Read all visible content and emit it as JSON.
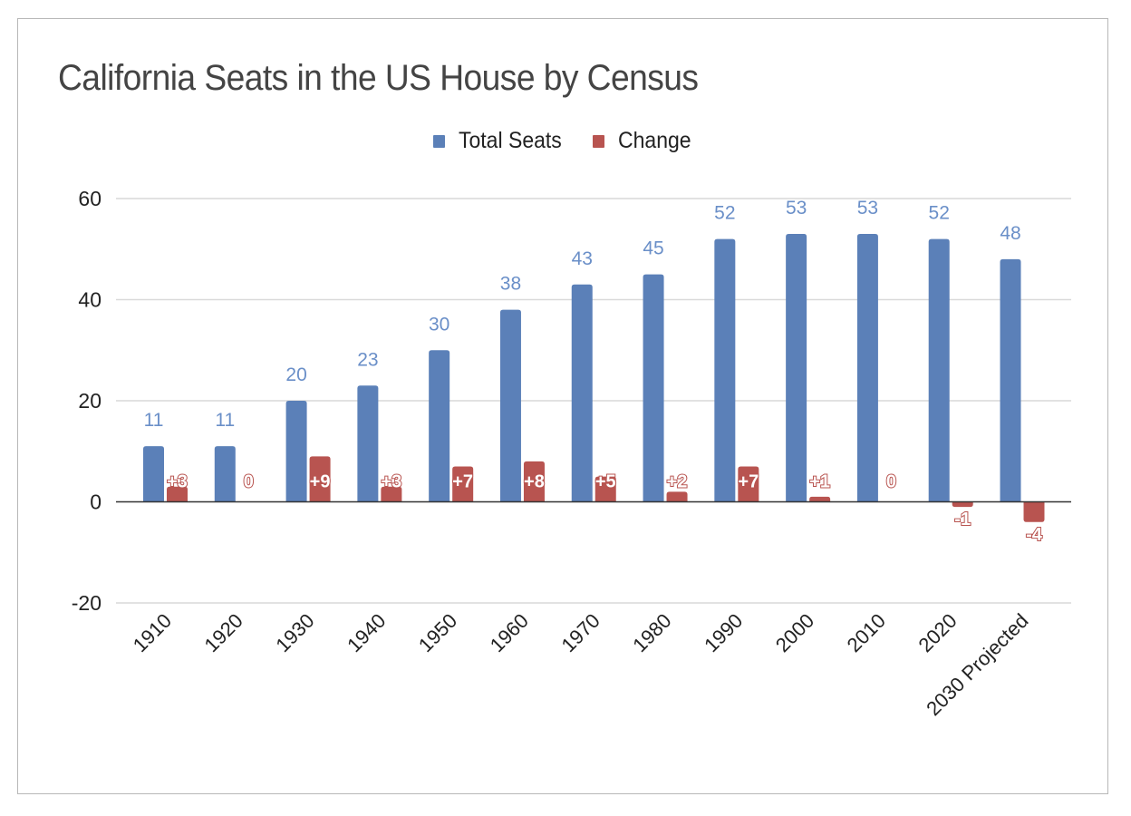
{
  "chart_data": {
    "type": "bar",
    "title": "California Seats in the US House by Census",
    "xlabel": "",
    "ylabel": "",
    "categories": [
      "1910",
      "1920",
      "1930",
      "1940",
      "1950",
      "1960",
      "1970",
      "1980",
      "1990",
      "2000",
      "2010",
      "2020",
      "2030 Projected"
    ],
    "series": [
      {
        "name": "Total Seats",
        "color": "#5b80b8",
        "label_color": "#6a8fc8",
        "values": [
          11,
          11,
          20,
          23,
          30,
          38,
          43,
          45,
          52,
          53,
          53,
          52,
          48
        ],
        "labels": [
          "11",
          "11",
          "20",
          "23",
          "30",
          "38",
          "43",
          "45",
          "52",
          "53",
          "53",
          "52",
          "48"
        ]
      },
      {
        "name": "Change",
        "color": "#b85450",
        "values": [
          3,
          0,
          9,
          3,
          7,
          8,
          5,
          2,
          7,
          1,
          0,
          -1,
          -4
        ],
        "labels": [
          "+3",
          "0",
          "+9",
          "+3",
          "+7",
          "+8",
          "+5",
          "+2",
          "+7",
          "+1",
          "0",
          "-1",
          "-4"
        ]
      }
    ],
    "ylim": [
      -20,
      60
    ],
    "yticks": [
      60,
      40,
      20,
      0,
      -20
    ],
    "grid": true,
    "legend_position": "top-center"
  }
}
